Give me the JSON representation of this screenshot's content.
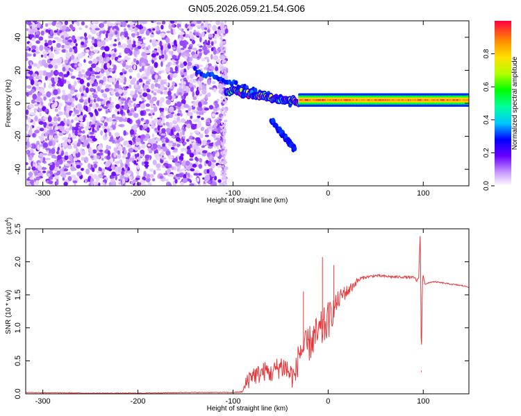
{
  "figure": {
    "title": "GN05.2026.059.21.54.G06"
  },
  "chart_data": [
    {
      "type": "heatmap",
      "xlabel": "Height of straight line (km)",
      "ylabel": "Frequency (Hz)",
      "xlim": [
        -318,
        148
      ],
      "ylim": [
        -50,
        50
      ],
      "xticks": [
        -300,
        -200,
        -100,
        0,
        100
      ],
      "yticks": [
        -40,
        -20,
        0,
        20,
        40
      ],
      "colorbar": {
        "label": "Normalized spectral amplitude",
        "range": [
          0.0,
          1.0
        ],
        "ticks": [
          0.0,
          0.2,
          0.4,
          0.6,
          0.8
        ],
        "tick_labels": [
          "0.0",
          "0.2",
          "0.4",
          "0.6",
          "0.8"
        ]
      },
      "regions": [
        {
          "x_range": [
            -318,
            -107
          ],
          "y_range": [
            -50,
            50
          ],
          "amplitude": [
            0.0,
            0.15
          ],
          "pattern": "noise"
        },
        {
          "x_range": [
            -140,
            -40
          ],
          "frequency_from": 20,
          "frequency_to": 0,
          "amplitude": 0.25,
          "pattern": "upper-diagonal"
        },
        {
          "x_range": [
            -107,
            -30
          ],
          "frequency_from": 8,
          "frequency_to": 1,
          "amplitude": [
            0.2,
            1.0
          ],
          "pattern": "main-diagonal"
        },
        {
          "x_range": [
            -60,
            -35
          ],
          "frequency_from": -10,
          "frequency_to": -28,
          "amplitude": 0.25,
          "pattern": "lower-branch"
        },
        {
          "x_range": [
            -30,
            148
          ],
          "frequency": 2,
          "amplitude": [
            0.8,
            1.0
          ],
          "pattern": "steady-band"
        }
      ],
      "grid": false
    },
    {
      "type": "line",
      "xlabel": "Height of straight line (km)",
      "ylabel": "SNR (10 * v/v)",
      "y_multiplier": "(x10^4)",
      "xlim": [
        -318,
        148
      ],
      "ylim": [
        0.0,
        2.5
      ],
      "xticks": [
        -300,
        -200,
        -100,
        0,
        100
      ],
      "yticks": [
        0.0,
        0.5,
        1.0,
        1.5,
        2.0,
        2.5
      ],
      "ytick_labels": [
        "0.0",
        "0.5",
        "1.0",
        "1.5",
        "2.0",
        "2.5"
      ],
      "line_color": "#e8373a",
      "series": [
        {
          "x": [
            -318,
            -250,
            -200,
            -150,
            -100,
            -90,
            -85,
            -80,
            -75,
            -70,
            -65,
            -60,
            -55,
            -50,
            -45,
            -40,
            -35,
            -30,
            -25,
            -20,
            -15,
            -10,
            -5,
            0,
            5,
            10,
            15,
            20,
            25,
            30,
            35,
            40,
            50,
            60,
            70,
            80,
            90,
            95,
            97,
            98,
            99,
            100,
            102,
            110,
            120,
            130,
            140,
            148
          ],
          "y": [
            0.02,
            0.01,
            0.01,
            0.02,
            0.02,
            0.03,
            0.2,
            0.3,
            0.28,
            0.32,
            0.35,
            0.3,
            0.38,
            0.42,
            0.4,
            0.3,
            0.25,
            0.65,
            0.68,
            0.75,
            0.85,
            0.9,
            1.0,
            1.1,
            1.25,
            1.4,
            1.5,
            1.55,
            1.62,
            1.7,
            1.75,
            1.77,
            1.79,
            1.78,
            1.77,
            1.77,
            1.76,
            1.7,
            2.5,
            0.35,
            1.7,
            1.8,
            1.66,
            1.7,
            1.68,
            1.66,
            1.64,
            1.62
          ],
          "noise": [
            0.005,
            0.005,
            0.005,
            0.005,
            0.005,
            0.01,
            0.15,
            0.15,
            0.15,
            0.15,
            0.15,
            0.15,
            0.15,
            0.2,
            0.2,
            0.2,
            0.2,
            0.25,
            0.25,
            0.28,
            0.28,
            0.3,
            0.3,
            0.3,
            0.2,
            0.15,
            0.12,
            0.1,
            0.08,
            0.05,
            0.03,
            0.02,
            0.02,
            0.02,
            0.02,
            0.02,
            0.02,
            0.05,
            0.0,
            0.0,
            0.0,
            0.02,
            0.01,
            0.01,
            0.01,
            0.01,
            0.01,
            0.01
          ]
        }
      ],
      "grid": false
    }
  ]
}
